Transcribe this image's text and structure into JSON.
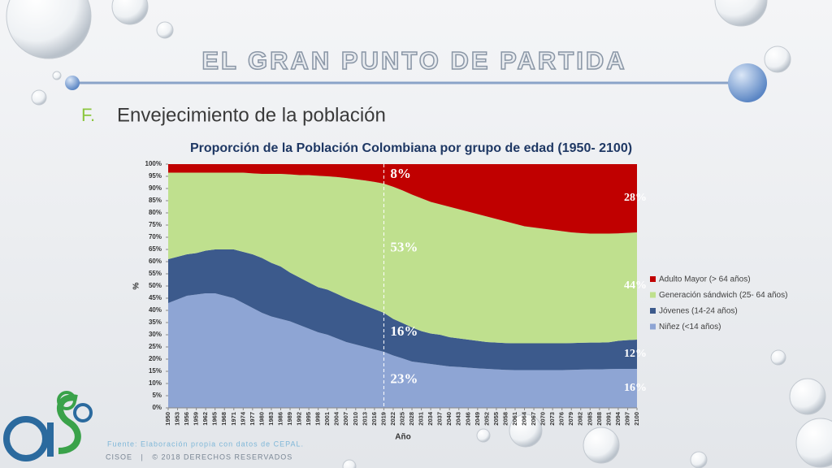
{
  "header": {
    "title": "EL GRAN PUNTO DE PARTIDA",
    "section_letter": "F.",
    "section_title": "Envejecimiento de la población"
  },
  "footer": {
    "source": "Fuente: Elaboración propia con datos de CEPAL.",
    "rights": "CISOE   |   © 2018 DERECHOS RESERVADOS"
  },
  "chart_data": {
    "type": "stacked_area",
    "title": "Proporción de la Población Colombiana por grupo de edad (1950- 2100)",
    "x_label": "Año",
    "y_label": "%",
    "x": [
      1950,
      1953,
      1956,
      1959,
      1962,
      1965,
      1968,
      1971,
      1974,
      1977,
      1980,
      1983,
      1986,
      1989,
      1992,
      1995,
      1998,
      2001,
      2004,
      2007,
      2010,
      2013,
      2016,
      2019,
      2022,
      2025,
      2028,
      2031,
      2034,
      2037,
      2040,
      2043,
      2046,
      2049,
      2052,
      2055,
      2058,
      2061,
      2064,
      2067,
      2070,
      2073,
      2076,
      2079,
      2082,
      2085,
      2088,
      2091,
      2094,
      2097,
      2100
    ],
    "xlim": [
      1950,
      2100
    ],
    "reference_line_x": 2019,
    "ylim": [
      0,
      100
    ],
    "yticks": [
      {
        "value": 0,
        "label": "0%"
      },
      {
        "value": 5,
        "label": "5%"
      },
      {
        "value": 10,
        "label": "10%"
      },
      {
        "value": 15,
        "label": "15%"
      },
      {
        "value": 20,
        "label": "20%"
      },
      {
        "value": 25,
        "label": "25%"
      },
      {
        "value": 30,
        "label": "30%"
      },
      {
        "value": 35,
        "label": "35%"
      },
      {
        "value": 40,
        "label": "40%"
      },
      {
        "value": 45,
        "label": "45%"
      },
      {
        "value": 50,
        "label": "50%"
      },
      {
        "value": 55,
        "label": "55%"
      },
      {
        "value": 60,
        "label": "60%"
      },
      {
        "value": 65,
        "label": "65%"
      },
      {
        "value": 70,
        "label": "70%"
      },
      {
        "value": 75,
        "label": "75%"
      },
      {
        "value": 80,
        "label": "80%"
      },
      {
        "value": 85,
        "label": "85%"
      },
      {
        "value": 90,
        "label": "90%"
      },
      {
        "value": 95,
        "label": "95%"
      },
      {
        "value": 100,
        "label": "100%"
      }
    ],
    "legend_position": "right",
    "series": [
      {
        "name": "Niñez (<14 años)",
        "color": "#8ea5d4",
        "values": [
          43,
          44.5,
          46,
          46.5,
          47,
          47,
          46,
          45,
          43,
          41,
          39,
          37.5,
          36.5,
          35.5,
          34,
          32.5,
          31,
          30,
          28.5,
          27,
          26,
          25,
          24,
          23,
          21.5,
          20.3,
          19,
          18.5,
          18,
          17.5,
          17,
          16.8,
          16.5,
          16.2,
          16,
          15.8,
          15.6,
          15.5,
          15.5,
          15.5,
          15.5,
          15.5,
          15.5,
          15.6,
          15.7,
          15.8,
          15.8,
          15.9,
          16,
          16,
          16
        ],
        "value_labels": [
          null,
          null,
          null,
          null,
          null,
          null,
          null,
          null,
          null,
          null,
          null,
          null,
          null,
          null,
          null,
          null,
          null,
          null,
          null,
          null,
          null,
          null,
          null,
          "23%",
          null,
          null,
          null,
          null,
          null,
          null,
          null,
          null,
          null,
          null,
          null,
          null,
          null,
          null,
          null,
          null,
          null,
          null,
          null,
          null,
          null,
          null,
          null,
          null,
          null,
          null,
          "16%"
        ]
      },
      {
        "name": "Jóvenes (14-24 años)",
        "color": "#3c5a8c",
        "values": [
          18,
          17.5,
          17,
          17,
          17.5,
          18,
          19,
          20,
          21,
          22,
          22.5,
          22,
          21.5,
          20,
          19.5,
          19,
          18.5,
          18.5,
          18.3,
          18,
          17.5,
          17,
          16.5,
          16,
          15,
          14.5,
          14,
          13,
          12.5,
          12.5,
          12,
          11.7,
          11.5,
          11.3,
          11,
          11,
          11,
          11,
          11,
          11,
          11,
          11,
          11,
          11,
          11,
          11,
          11,
          11,
          11.5,
          11.8,
          12
        ],
        "value_labels": [
          null,
          null,
          null,
          null,
          null,
          null,
          null,
          null,
          null,
          null,
          null,
          null,
          null,
          null,
          null,
          null,
          null,
          null,
          null,
          null,
          null,
          null,
          null,
          "16%",
          null,
          null,
          null,
          null,
          null,
          null,
          null,
          null,
          null,
          null,
          null,
          null,
          null,
          null,
          null,
          null,
          null,
          null,
          null,
          null,
          null,
          null,
          null,
          null,
          null,
          null,
          "12%"
        ]
      },
      {
        "name": "Generación sándwich (25- 64 años)",
        "color": "#bfe08e",
        "values": [
          35.5,
          34.5,
          33.5,
          33,
          32,
          31.5,
          31.5,
          31.5,
          32.5,
          33.2,
          34.5,
          36.5,
          38,
          40.3,
          42,
          44,
          45.7,
          46.5,
          47.9,
          49.3,
          50.3,
          51.3,
          52.2,
          53,
          54.2,
          54.4,
          54.5,
          54.5,
          54,
          53.5,
          53.5,
          53,
          52.5,
          52,
          51.5,
          50.7,
          49.9,
          49,
          48,
          47.5,
          47,
          46.5,
          46,
          45.4,
          45,
          44.7,
          44.7,
          44.6,
          44.1,
          44,
          44
        ],
        "value_labels": [
          null,
          null,
          null,
          null,
          null,
          null,
          null,
          null,
          null,
          null,
          null,
          null,
          null,
          null,
          null,
          null,
          null,
          null,
          null,
          null,
          null,
          null,
          null,
          "53%",
          null,
          null,
          null,
          null,
          null,
          null,
          null,
          null,
          null,
          null,
          null,
          null,
          null,
          null,
          null,
          null,
          null,
          null,
          null,
          null,
          null,
          null,
          null,
          null,
          null,
          null,
          "44%"
        ]
      },
      {
        "name": "Adulto Mayor (> 64 años)",
        "color": "#c00000",
        "values": [
          3.5,
          3.5,
          3.5,
          3.5,
          3.5,
          3.5,
          3.5,
          3.5,
          3.5,
          3.8,
          4,
          4,
          4,
          4.2,
          4.5,
          4.5,
          4.8,
          5,
          5.3,
          5.7,
          6.2,
          6.7,
          7.3,
          8,
          9.3,
          10.8,
          12.5,
          14,
          15.5,
          16.5,
          17.5,
          18.5,
          19.5,
          20.5,
          21.5,
          22.5,
          23.5,
          24.5,
          25.5,
          26,
          26.5,
          27,
          27.5,
          28,
          28.3,
          28.5,
          28.5,
          28.5,
          28.4,
          28.2,
          28
        ],
        "value_labels": [
          null,
          null,
          null,
          null,
          null,
          null,
          null,
          null,
          null,
          null,
          null,
          null,
          null,
          null,
          null,
          null,
          null,
          null,
          null,
          null,
          null,
          null,
          null,
          "8%",
          null,
          null,
          null,
          null,
          null,
          null,
          null,
          null,
          null,
          null,
          null,
          null,
          null,
          null,
          null,
          null,
          null,
          null,
          null,
          null,
          null,
          null,
          null,
          null,
          null,
          null,
          "28%"
        ]
      }
    ]
  }
}
